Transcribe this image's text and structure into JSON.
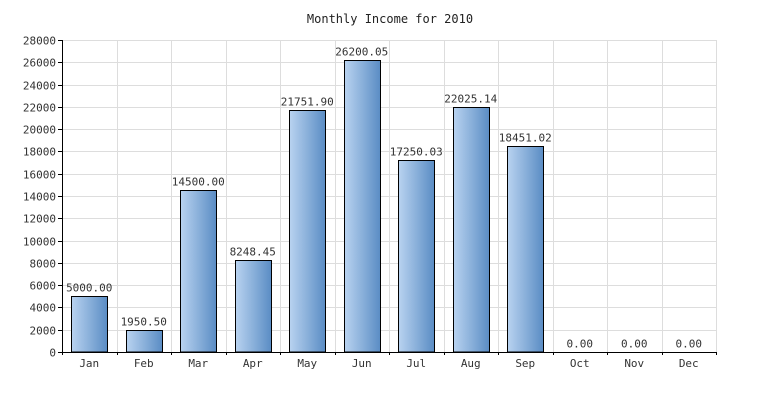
{
  "chart_data": {
    "type": "bar",
    "title": "Monthly Income for 2010",
    "xlabel": "",
    "ylabel": "",
    "categories": [
      "Jan",
      "Feb",
      "Mar",
      "Apr",
      "May",
      "Jun",
      "Jul",
      "Aug",
      "Sep",
      "Oct",
      "Nov",
      "Dec"
    ],
    "values": [
      5000.0,
      1950.5,
      14500.0,
      8248.45,
      21751.9,
      26200.05,
      17250.03,
      22025.14,
      18451.02,
      0.0,
      0.0,
      0.0
    ],
    "data_labels": [
      "5000.00",
      "1950.50",
      "14500.00",
      "8248.45",
      "21751.90",
      "26200.05",
      "17250.03",
      "22025.14",
      "18451.02",
      "0.00",
      "0.00",
      "0.00"
    ],
    "ylim": [
      0,
      28000
    ],
    "yticks": [
      0,
      2000,
      4000,
      6000,
      8000,
      10000,
      12000,
      14000,
      16000,
      18000,
      20000,
      22000,
      24000,
      26000,
      28000
    ],
    "grid": true,
    "legend": "none",
    "colors": {
      "bar_light": "#b9d3f0",
      "bar_dark": "#5a8cc4",
      "bar_outline": "#000000",
      "grid": "#dddddd",
      "axis": "#000000",
      "text": "#333333"
    }
  }
}
